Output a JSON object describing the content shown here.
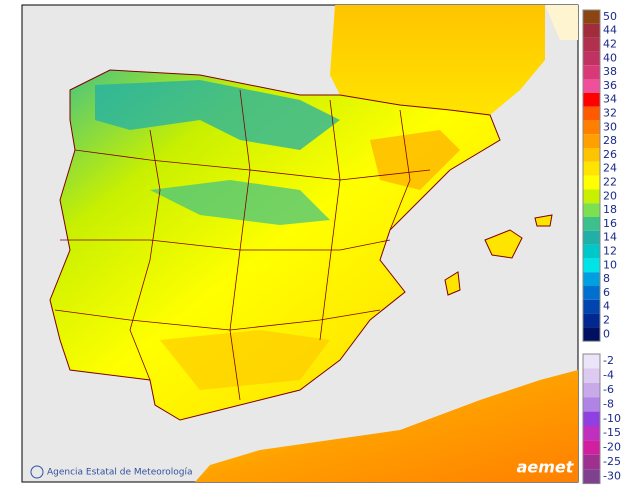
{
  "legend": [
    {
      "label": 50,
      "color": "#8b4513"
    },
    {
      "label": 44,
      "color": "#a02c3c"
    },
    {
      "label": 42,
      "color": "#b0304e"
    },
    {
      "label": 40,
      "color": "#c03262"
    },
    {
      "label": 38,
      "color": "#d83a78"
    },
    {
      "label": 36,
      "color": "#f0509a"
    },
    {
      "label": 34,
      "color": "#ff0000"
    },
    {
      "label": 32,
      "color": "#ff5a00"
    },
    {
      "label": 30,
      "color": "#ff8000"
    },
    {
      "label": 28,
      "color": "#ffa000"
    },
    {
      "label": 26,
      "color": "#ffc400"
    },
    {
      "label": 24,
      "color": "#ffe400"
    },
    {
      "label": 22,
      "color": "#ffff00"
    },
    {
      "label": 20,
      "color": "#c8f000"
    },
    {
      "label": 18,
      "color": "#7ce050"
    },
    {
      "label": 16,
      "color": "#3cc08c"
    },
    {
      "label": 14,
      "color": "#20b0a8"
    },
    {
      "label": 12,
      "color": "#00c8c8"
    },
    {
      "label": 10,
      "color": "#00e4e8"
    },
    {
      "label": 8,
      "color": "#00a0e0"
    },
    {
      "label": 6,
      "color": "#0070d0"
    },
    {
      "label": 4,
      "color": "#0044b0"
    },
    {
      "label": 2,
      "color": "#002890"
    },
    {
      "label": 0,
      "color": "#001060"
    }
  ],
  "legend_negative": [
    {
      "label": -2,
      "color": "#ece4f8"
    },
    {
      "label": -4,
      "color": "#dccaf0"
    },
    {
      "label": -6,
      "color": "#c8aae8"
    },
    {
      "label": -8,
      "color": "#b084e4"
    },
    {
      "label": -10,
      "color": "#9040e0"
    },
    {
      "label": -15,
      "color": "#c030c0"
    },
    {
      "label": -20,
      "color": "#d020a0"
    },
    {
      "label": -25,
      "color": "#a03090"
    },
    {
      "label": -30,
      "color": "#804090"
    }
  ],
  "credit": "Agencia Estatal de Meteorología",
  "logo": "aemet"
}
